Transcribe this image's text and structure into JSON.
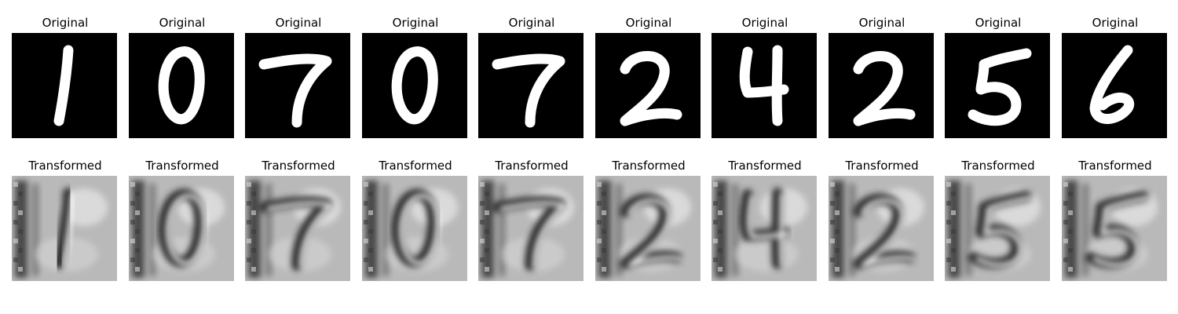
{
  "rows": [
    {
      "title": "Original",
      "style": "original",
      "digits": [
        "1",
        "0",
        "7",
        "0",
        "7",
        "2",
        "4",
        "2",
        "5",
        "6"
      ]
    },
    {
      "title": "Transformed",
      "style": "transformed",
      "digits": [
        "1",
        "0",
        "7",
        "0",
        "7",
        "2",
        "4",
        "2",
        "5",
        "5"
      ]
    }
  ]
}
